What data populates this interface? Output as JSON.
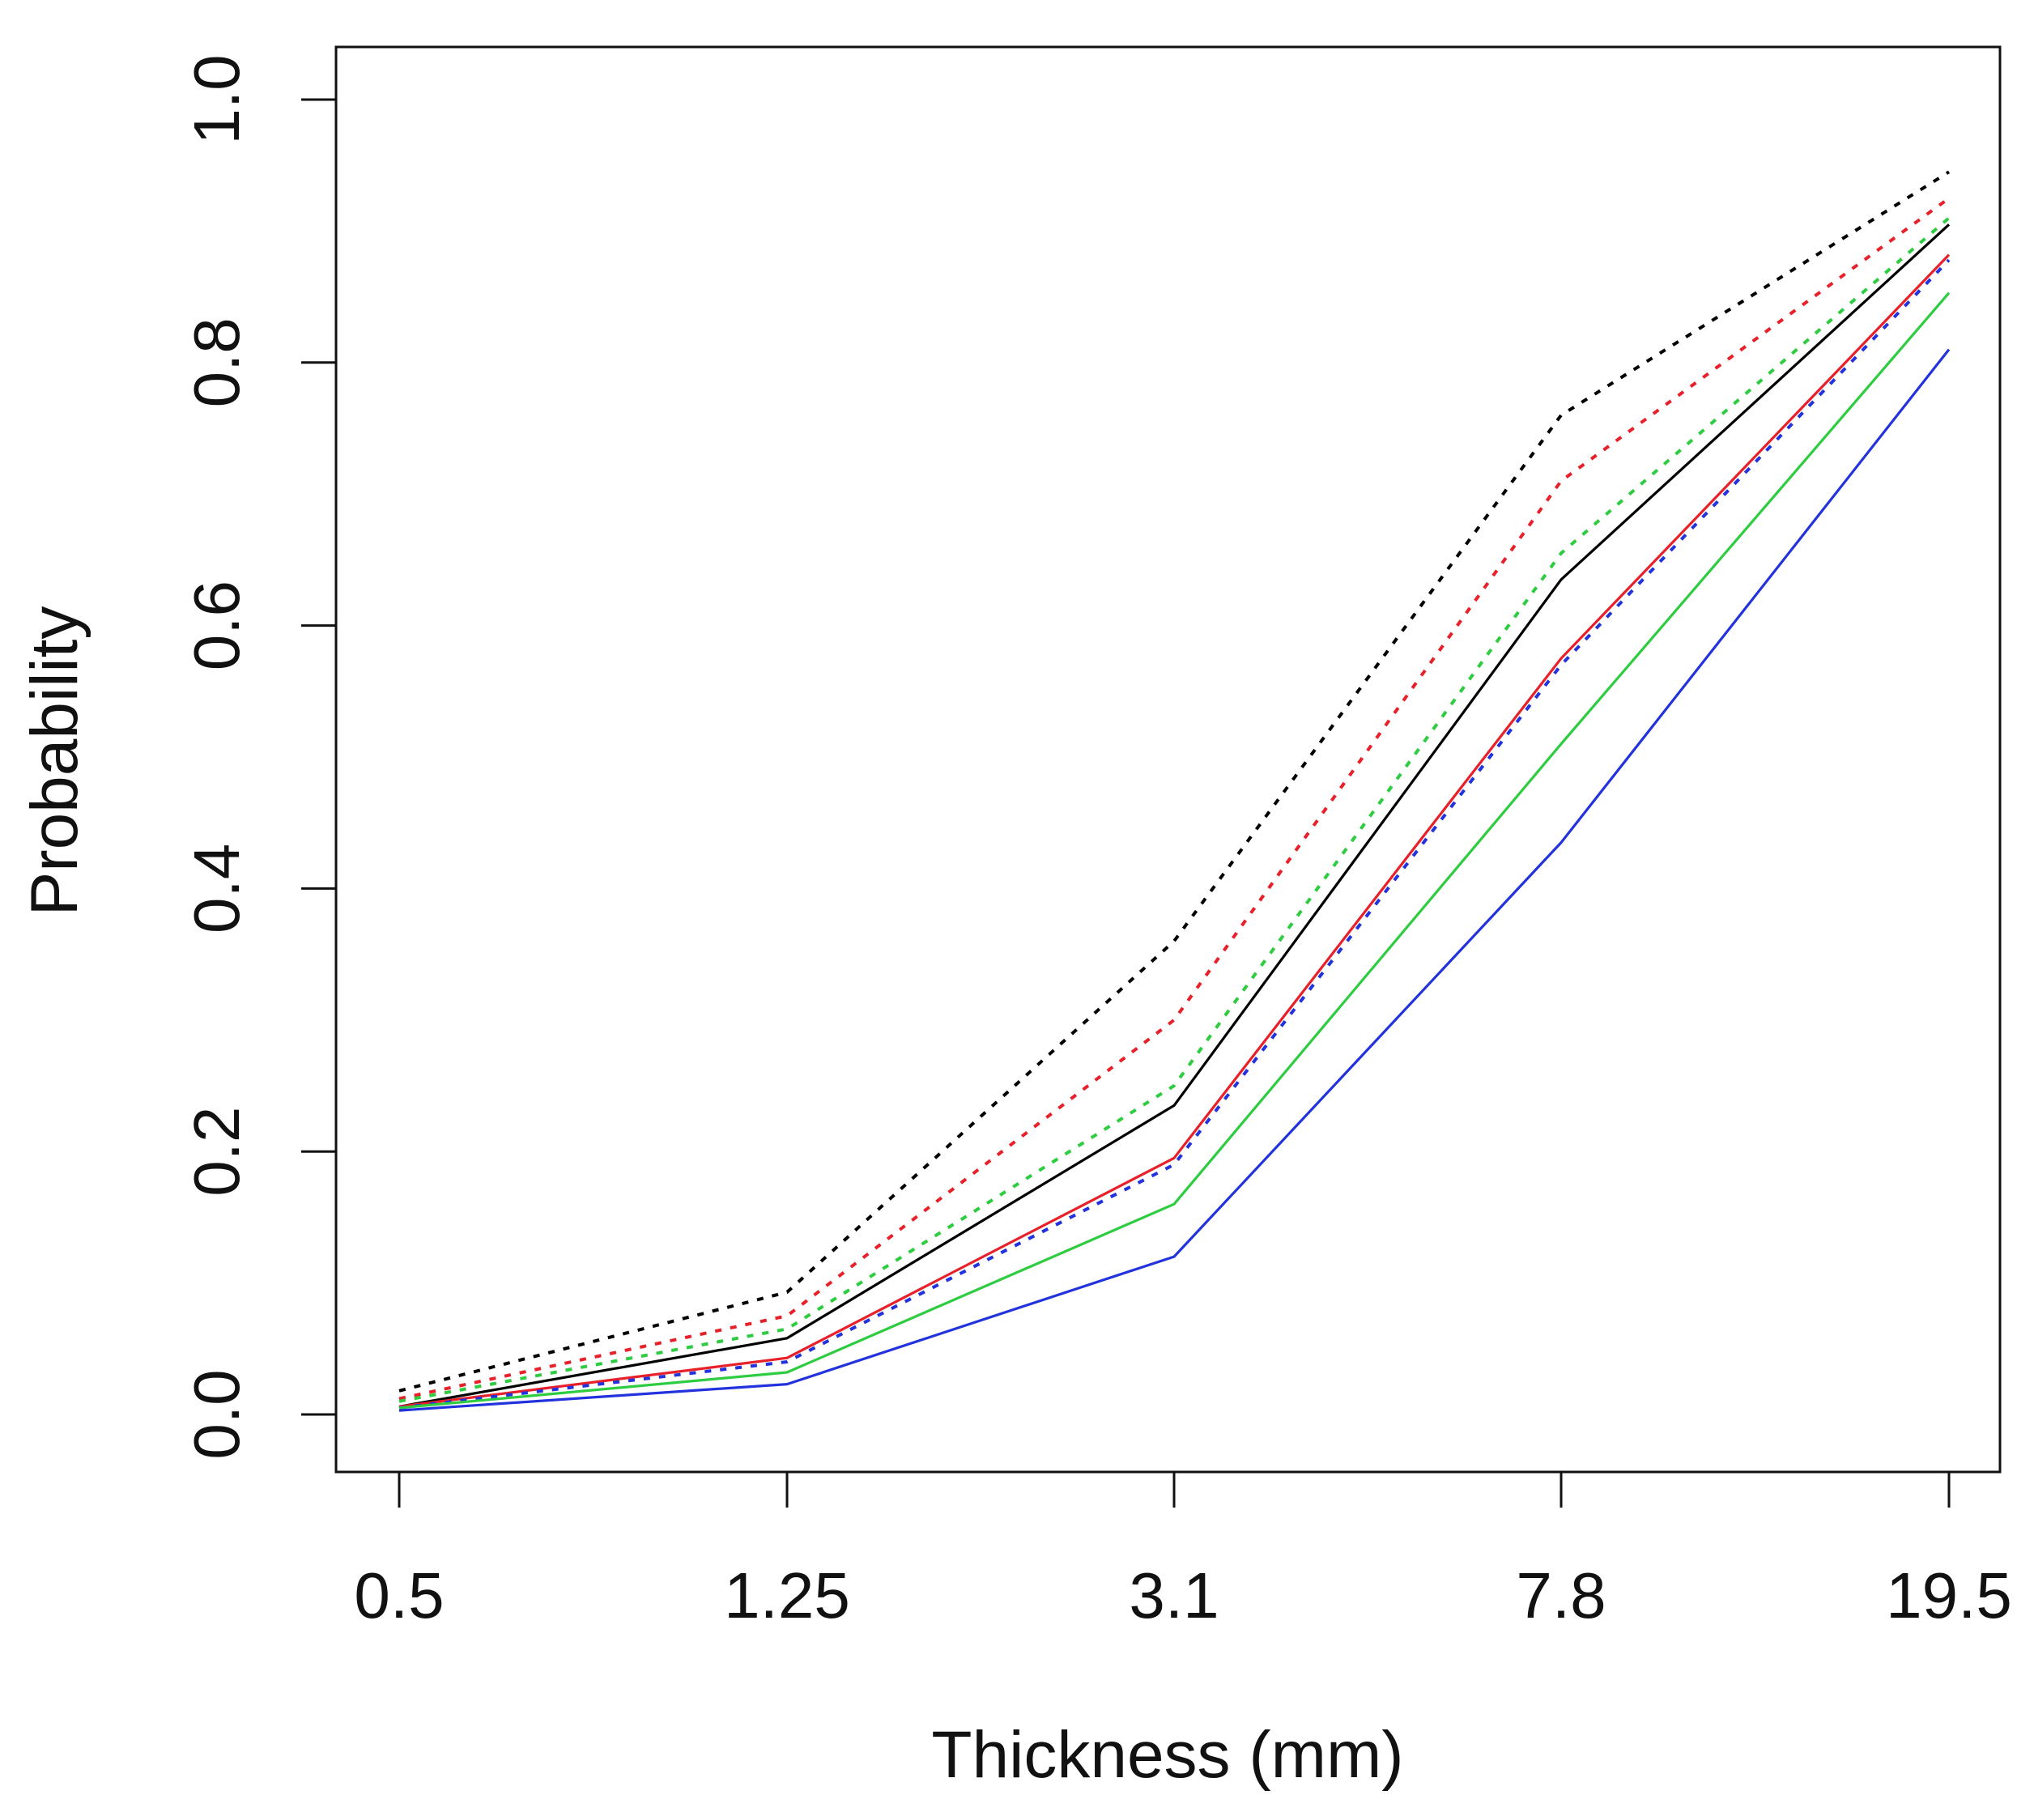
{
  "chart_data": {
    "type": "line",
    "title": "",
    "xlabel": "Thickness (mm)",
    "ylabel": "Probability",
    "x": [
      "0.5",
      "1.25",
      "3.1",
      "7.8",
      "19.5"
    ],
    "xticks": [
      "0.5",
      "1.25",
      "3.1",
      "7.8",
      "19.5"
    ],
    "yticks": [
      "0.0",
      "0.2",
      "0.4",
      "0.6",
      "0.8",
      "1.0"
    ],
    "ylim": [
      0,
      1
    ],
    "grid": false,
    "legend": "none",
    "series": [
      {
        "name": "black dotted",
        "color": "#000000",
        "style": "dotted",
        "values": [
          0.018,
          0.093,
          0.36,
          0.76,
          0.945
        ]
      },
      {
        "name": "red dotted",
        "color": "#e8202a",
        "style": "dotted",
        "values": [
          0.012,
          0.075,
          0.3,
          0.71,
          0.925
        ]
      },
      {
        "name": "green dotted",
        "color": "#2ecc40",
        "style": "dotted",
        "values": [
          0.01,
          0.065,
          0.25,
          0.655,
          0.91
        ]
      },
      {
        "name": "black solid",
        "color": "#000000",
        "style": "solid",
        "values": [
          0.006,
          0.058,
          0.235,
          0.635,
          0.905
        ]
      },
      {
        "name": "red solid",
        "color": "#e8202a",
        "style": "solid",
        "values": [
          0.006,
          0.043,
          0.195,
          0.575,
          0.882
        ]
      },
      {
        "name": "blue dotted",
        "color": "#2233dd",
        "style": "dotted",
        "values": [
          0.005,
          0.04,
          0.19,
          0.57,
          0.878
        ]
      },
      {
        "name": "green solid",
        "color": "#2ecc40",
        "style": "solid",
        "values": [
          0.005,
          0.032,
          0.16,
          0.51,
          0.853
        ]
      },
      {
        "name": "blue solid",
        "color": "#2233dd",
        "style": "solid",
        "values": [
          0.003,
          0.023,
          0.12,
          0.435,
          0.81
        ]
      }
    ]
  }
}
